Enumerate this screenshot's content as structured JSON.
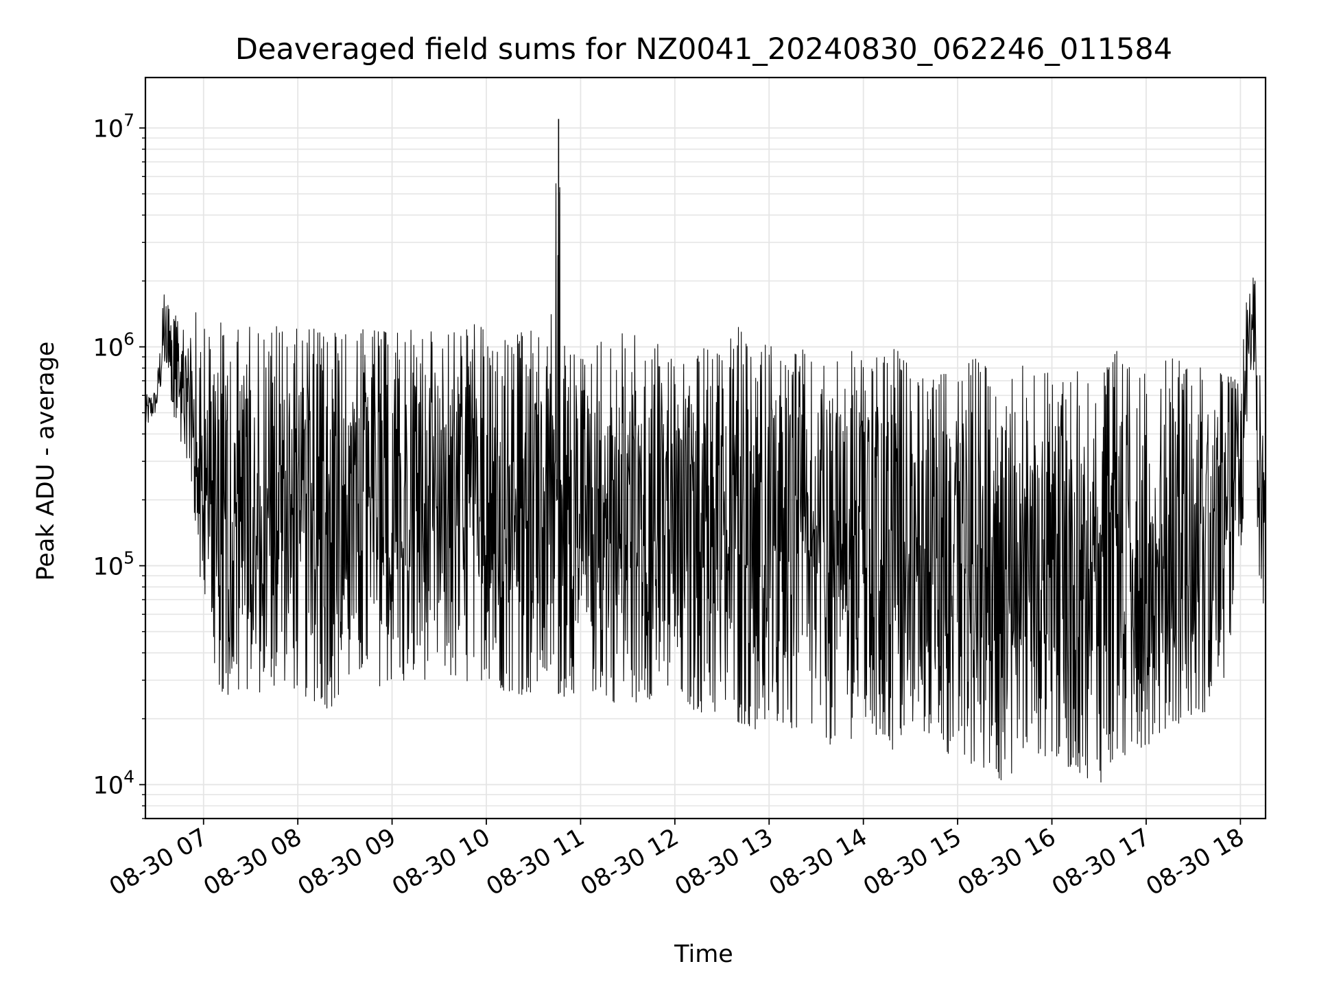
{
  "chart_data": {
    "type": "line",
    "title": "Deaveraged field sums for NZ0041_20240830_062246_011584",
    "xlabel": "Time",
    "ylabel": "Peak ADU - average",
    "yscale": "log",
    "ylim": [
      7000,
      17000000
    ],
    "xlim": [
      "2024-08-30 06:23",
      "2024-08-30 18:16"
    ],
    "grid": true,
    "legend": "none",
    "x_ticks": [
      {
        "value": "2024-08-30 07:00",
        "label": "08-30 07"
      },
      {
        "value": "2024-08-30 08:00",
        "label": "08-30 08"
      },
      {
        "value": "2024-08-30 09:00",
        "label": "08-30 09"
      },
      {
        "value": "2024-08-30 10:00",
        "label": "08-30 10"
      },
      {
        "value": "2024-08-30 11:00",
        "label": "08-30 11"
      },
      {
        "value": "2024-08-30 12:00",
        "label": "08-30 12"
      },
      {
        "value": "2024-08-30 13:00",
        "label": "08-30 13"
      },
      {
        "value": "2024-08-30 14:00",
        "label": "08-30 14"
      },
      {
        "value": "2024-08-30 15:00",
        "label": "08-30 15"
      },
      {
        "value": "2024-08-30 16:00",
        "label": "08-30 16"
      },
      {
        "value": "2024-08-30 17:00",
        "label": "08-30 17"
      },
      {
        "value": "2024-08-30 18:00",
        "label": "08-30 18"
      }
    ],
    "y_ticks": [
      {
        "value": 10000,
        "base": "10",
        "exp": "4"
      },
      {
        "value": 100000,
        "base": "10",
        "exp": "5"
      },
      {
        "value": 1000000,
        "base": "10",
        "exp": "6"
      },
      {
        "value": 10000000,
        "base": "10",
        "exp": "7"
      }
    ],
    "line_color": "#000000",
    "grid_color": "#e5e5e5",
    "series": [
      {
        "x": [
          "2024-08-30 06:23",
          "2024-08-30 06:30",
          "2024-08-30 06:35",
          "2024-08-30 06:40",
          "2024-08-30 06:45",
          "2024-08-30 06:50",
          "2024-08-30 06:55",
          "2024-08-30 07:00",
          "2024-08-30 07:10",
          "2024-08-30 07:20",
          "2024-08-30 07:30",
          "2024-08-30 07:40",
          "2024-08-30 07:50",
          "2024-08-30 08:00",
          "2024-08-30 08:10",
          "2024-08-30 08:20",
          "2024-08-30 08:30",
          "2024-08-30 08:40",
          "2024-08-30 08:50",
          "2024-08-30 09:00",
          "2024-08-30 09:10",
          "2024-08-30 09:20",
          "2024-08-30 09:30",
          "2024-08-30 09:40",
          "2024-08-30 09:50",
          "2024-08-30 10:00",
          "2024-08-30 10:10",
          "2024-08-30 10:20",
          "2024-08-30 10:30",
          "2024-08-30 10:40",
          "2024-08-30 10:46",
          "2024-08-30 10:50",
          "2024-08-30 11:00",
          "2024-08-30 11:10",
          "2024-08-30 11:20",
          "2024-08-30 11:30",
          "2024-08-30 11:40",
          "2024-08-30 11:50",
          "2024-08-30 12:00",
          "2024-08-30 12:10",
          "2024-08-30 12:20",
          "2024-08-30 12:30",
          "2024-08-30 12:40",
          "2024-08-30 12:50",
          "2024-08-30 13:00",
          "2024-08-30 13:10",
          "2024-08-30 13:20",
          "2024-08-30 13:30",
          "2024-08-30 13:40",
          "2024-08-30 13:50",
          "2024-08-30 14:00",
          "2024-08-30 14:10",
          "2024-08-30 14:20",
          "2024-08-30 14:30",
          "2024-08-30 14:40",
          "2024-08-30 14:50",
          "2024-08-30 15:00",
          "2024-08-30 15:10",
          "2024-08-30 15:20",
          "2024-08-30 15:30",
          "2024-08-30 15:40",
          "2024-08-30 15:50",
          "2024-08-30 16:00",
          "2024-08-30 16:10",
          "2024-08-30 16:20",
          "2024-08-30 16:30",
          "2024-08-30 16:40",
          "2024-08-30 16:50",
          "2024-08-30 17:00",
          "2024-08-30 17:10",
          "2024-08-30 17:20",
          "2024-08-30 17:30",
          "2024-08-30 17:40",
          "2024-08-30 17:50",
          "2024-08-30 18:00",
          "2024-08-30 18:05",
          "2024-08-30 18:08",
          "2024-08-30 18:12",
          "2024-08-30 18:16"
        ],
        "upper": [
          600000,
          650000,
          1900000,
          1300000,
          1500000,
          1300000,
          1800000,
          1200000,
          1300000,
          1200000,
          1250000,
          1200000,
          1300000,
          1200000,
          1250000,
          1200000,
          1150000,
          1200000,
          1200000,
          1150000,
          1200000,
          1200000,
          1150000,
          1200000,
          1300000,
          1200000,
          1100000,
          1150000,
          1200000,
          1000000,
          11000000,
          1000000,
          900000,
          1100000,
          1000000,
          1350000,
          900000,
          1100000,
          850000,
          900000,
          1000000,
          900000,
          1300000,
          850000,
          1100000,
          900000,
          1000000,
          800000,
          850000,
          1000000,
          850000,
          900000,
          1000000,
          800000,
          700000,
          750000,
          750000,
          900000,
          800000,
          700000,
          850000,
          800000,
          750000,
          900000,
          800000,
          750000,
          1000000,
          800000,
          750000,
          850000,
          900000,
          850000,
          800000,
          750000,
          700000,
          2200000,
          3000000,
          900000,
          200000
        ],
        "lower": [
          400000,
          500000,
          700000,
          450000,
          380000,
          300000,
          150000,
          60000,
          25000,
          23000,
          28000,
          25000,
          30000,
          26000,
          24000,
          22000,
          27000,
          30000,
          28000,
          29000,
          27000,
          30000,
          32000,
          29000,
          28000,
          31000,
          27000,
          26000,
          25000,
          28000,
          26000,
          25000,
          27000,
          26000,
          24000,
          22000,
          25000,
          24000,
          23000,
          22000,
          21000,
          20000,
          19000,
          18000,
          17000,
          18000,
          16000,
          17000,
          15000,
          16000,
          17000,
          15000,
          14000,
          16000,
          17000,
          15000,
          12000,
          11000,
          12000,
          10000,
          13000,
          14000,
          13000,
          12000,
          11000,
          10000,
          12000,
          13000,
          15000,
          17000,
          19000,
          20000,
          22000,
          30000,
          100000,
          400000,
          900000,
          70000,
          45000
        ]
      }
    ]
  }
}
